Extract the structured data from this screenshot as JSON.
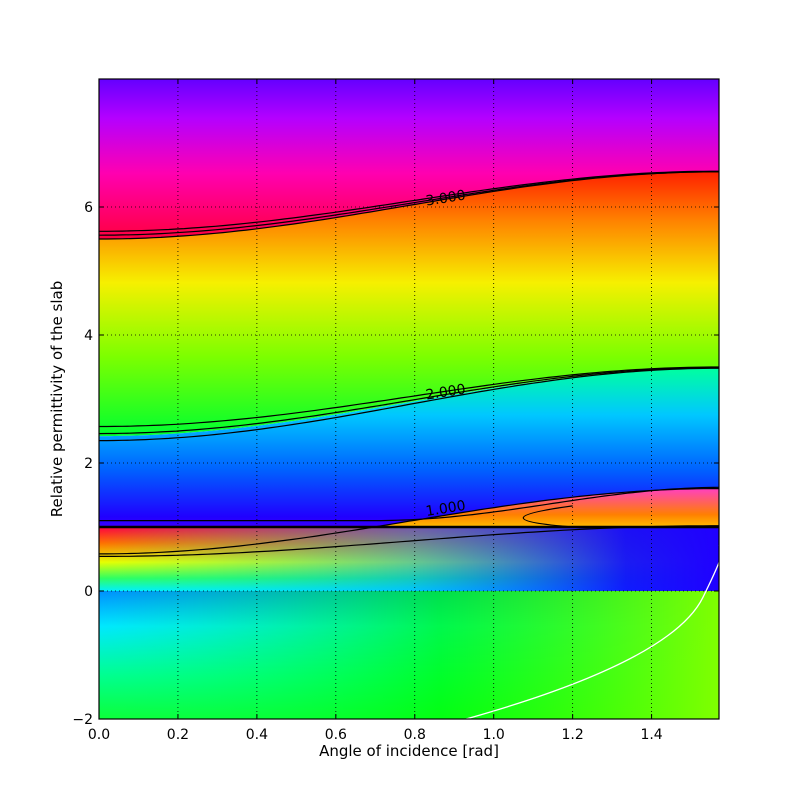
{
  "chart_data": {
    "type": "heatmap",
    "title": "",
    "xlabel": "Angle of incidence [rad]",
    "ylabel": "Relative permittivity of the slab",
    "xlim": [
      0.0,
      1.5708
    ],
    "ylim": [
      -2,
      8
    ],
    "xticks": [
      0.0,
      0.2,
      0.4,
      0.6,
      0.8,
      1.0,
      1.2,
      1.4
    ],
    "xtick_labels": [
      "0.0",
      "0.2",
      "0.4",
      "0.6",
      "0.8",
      "1.0",
      "1.2",
      "1.4"
    ],
    "yticks": [
      -2,
      0,
      2,
      4,
      6
    ],
    "ytick_labels": [
      "−2",
      "0",
      "2",
      "4",
      "6"
    ],
    "grid": true,
    "colormap": "hsv",
    "contour_labels": [
      {
        "text": "1.000",
        "x": 0.88,
        "y": 1.22
      },
      {
        "text": "2.000",
        "x": 0.88,
        "y": 3.04
      },
      {
        "text": "3.000",
        "x": 0.88,
        "y": 6.07
      }
    ],
    "contour_color": "#000000",
    "secondary_curve_color": "#ffffff"
  }
}
